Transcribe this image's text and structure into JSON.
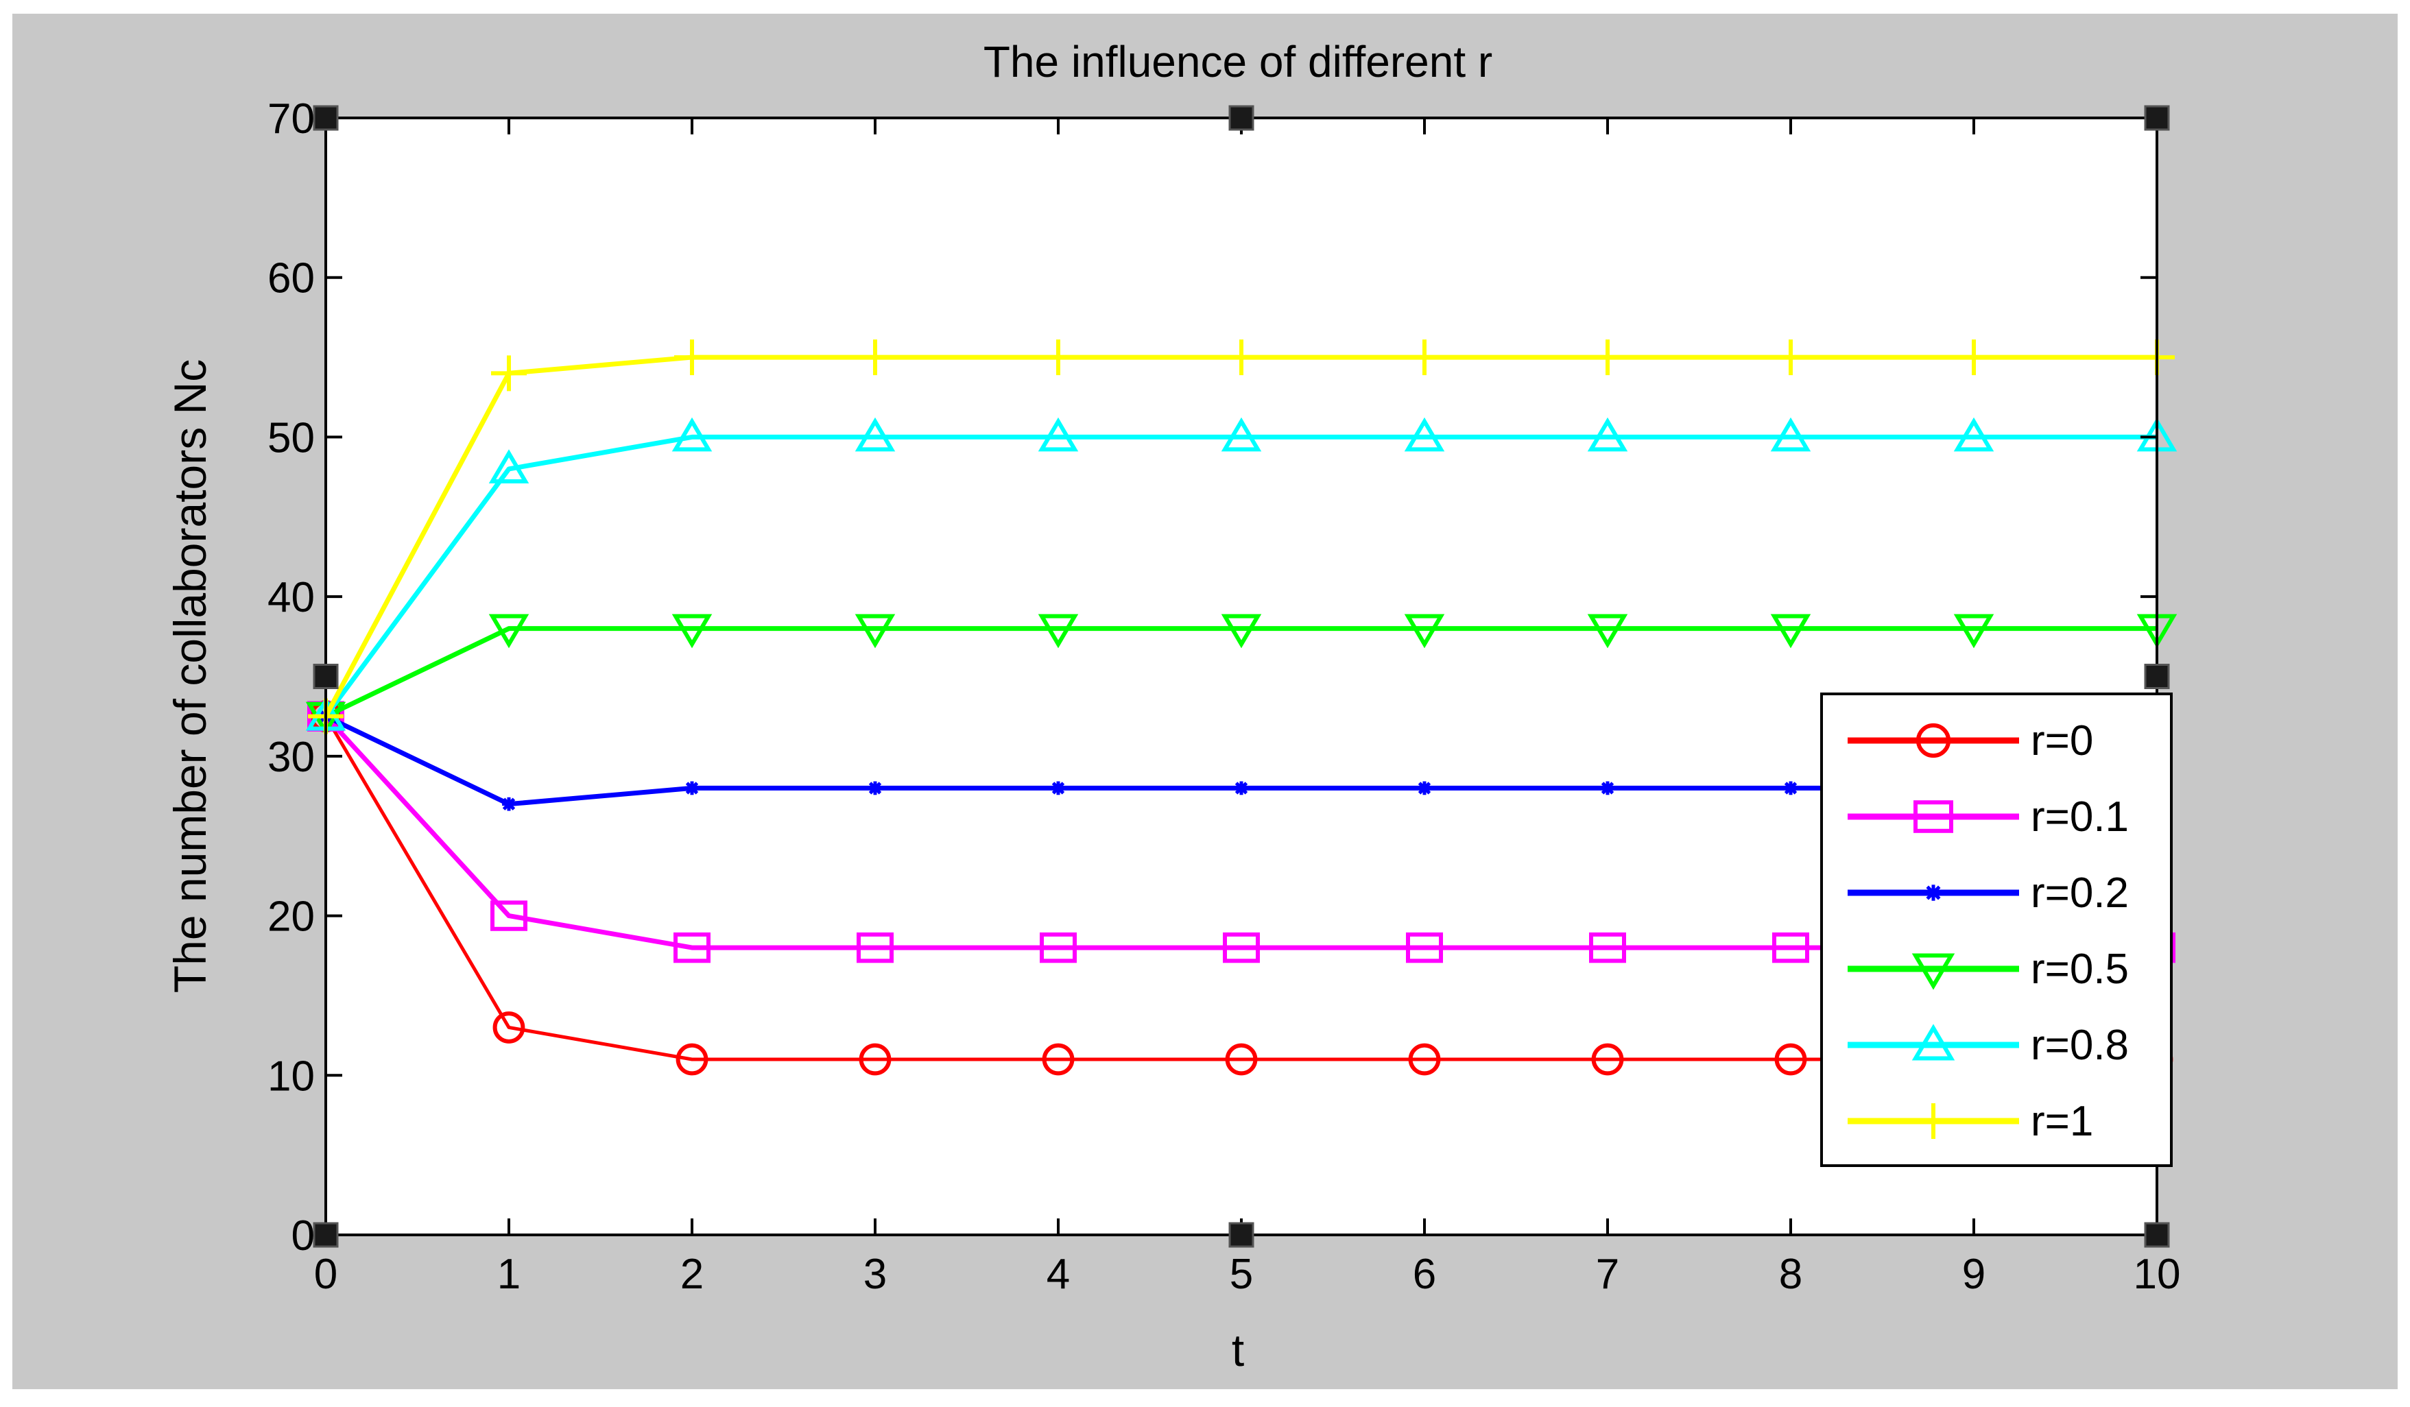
{
  "chart_data": {
    "type": "line",
    "title": "The influence of different r",
    "xlabel": "t",
    "ylabel": "The number of collaborators Nc",
    "xlim": [
      0,
      10
    ],
    "ylim": [
      0,
      70
    ],
    "xticks": [
      "0",
      "1",
      "2",
      "3",
      "4",
      "5",
      "6",
      "7",
      "8",
      "9",
      "10"
    ],
    "yticks": [
      "0",
      "10",
      "20",
      "30",
      "40",
      "50",
      "60",
      "70"
    ],
    "grid": false,
    "legend_position": "right",
    "x": [
      0,
      1,
      2,
      3,
      4,
      5,
      6,
      7,
      8,
      9,
      10
    ],
    "series": [
      {
        "name": "r=0",
        "color": "#ff0000",
        "marker": "circle",
        "values": [
          32.5,
          13,
          11,
          11,
          11,
          11,
          11,
          11,
          11,
          11,
          11
        ]
      },
      {
        "name": "r=0.1",
        "color": "#ff00ff",
        "marker": "square",
        "values": [
          32.5,
          20,
          18,
          18,
          18,
          18,
          18,
          18,
          18,
          18,
          18
        ]
      },
      {
        "name": "r=0.2",
        "color": "#0000ff",
        "marker": "star",
        "values": [
          32.5,
          27,
          28,
          28,
          28,
          28,
          28,
          28,
          28,
          28,
          28
        ]
      },
      {
        "name": "r=0.5",
        "color": "#00ff00",
        "marker": "triangle-down",
        "values": [
          32.5,
          38,
          38,
          38,
          38,
          38,
          38,
          38,
          38,
          38,
          38
        ]
      },
      {
        "name": "r=0.8",
        "color": "#00ffff",
        "marker": "triangle-up",
        "values": [
          32.5,
          48,
          50,
          50,
          50,
          50,
          50,
          50,
          50,
          50,
          50
        ]
      },
      {
        "name": "r=1",
        "color": "#ffff00",
        "marker": "plus",
        "values": [
          32.5,
          54,
          55,
          55,
          55,
          55,
          55,
          55,
          55,
          55,
          55
        ]
      }
    ]
  }
}
